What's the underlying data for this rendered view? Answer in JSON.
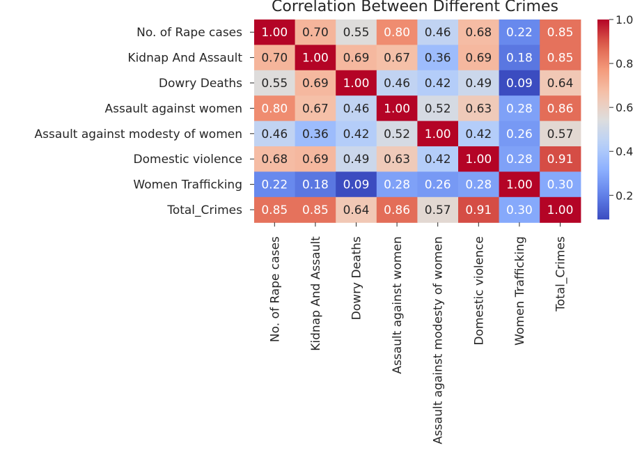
{
  "chart_data": {
    "type": "heatmap",
    "title": "Correlation Between Different Crimes",
    "row_labels": [
      "No. of Rape cases",
      "Kidnap And Assault",
      "Dowry Deaths",
      "Assault against women",
      "Assault against modesty of women",
      "Domestic violence",
      "Women Trafficking",
      "Total_Crimes"
    ],
    "column_labels": [
      "No. of Rape cases",
      "Kidnap And Assault",
      "Dowry Deaths",
      "Assault against women",
      "Assault against modesty of women",
      "Domestic violence",
      "Women Trafficking",
      "Total_Crimes"
    ],
    "values": [
      [
        1.0,
        0.7,
        0.55,
        0.8,
        0.46,
        0.68,
        0.22,
        0.85
      ],
      [
        0.7,
        1.0,
        0.69,
        0.67,
        0.36,
        0.69,
        0.18,
        0.85
      ],
      [
        0.55,
        0.69,
        1.0,
        0.46,
        0.42,
        0.49,
        0.09,
        0.64
      ],
      [
        0.8,
        0.67,
        0.46,
        1.0,
        0.52,
        0.63,
        0.28,
        0.86
      ],
      [
        0.46,
        0.36,
        0.42,
        0.52,
        1.0,
        0.42,
        0.26,
        0.57
      ],
      [
        0.68,
        0.69,
        0.49,
        0.63,
        0.42,
        1.0,
        0.28,
        0.91
      ],
      [
        0.22,
        0.18,
        0.09,
        0.28,
        0.26,
        0.28,
        1.0,
        0.3
      ],
      [
        0.85,
        0.85,
        0.64,
        0.86,
        0.57,
        0.91,
        0.3,
        1.0
      ]
    ],
    "annotation_format": "2 decimals",
    "colormap": "coolwarm",
    "vmin": 0.09,
    "vmax": 1.0,
    "colorbar": {
      "ticks": [
        0.2,
        0.4,
        0.6,
        0.8,
        1.0
      ],
      "tick_labels": [
        "0.2",
        "0.4",
        "0.6",
        "0.8",
        "1.0"
      ],
      "placement": "right"
    },
    "colors": {
      "cold": "#3b4cc0",
      "neutral": "#dddddd",
      "hot": "#b40426",
      "text": "#262626"
    }
  }
}
